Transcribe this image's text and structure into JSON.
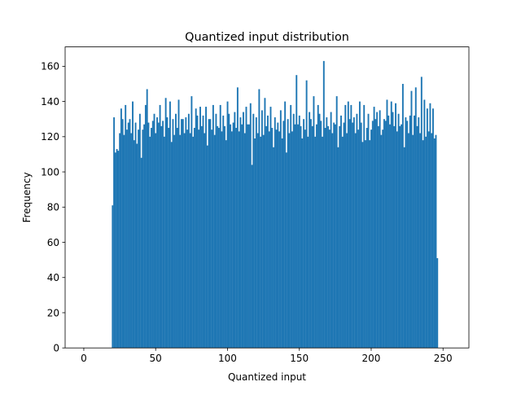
{
  "chart_data": {
    "type": "bar",
    "title": "Quantized input distribution",
    "xlabel": "Quantized input",
    "ylabel": "Frequency",
    "xlim": [
      -13,
      268
    ],
    "ylim": [
      0,
      171
    ],
    "x_ticks": [
      0,
      50,
      100,
      150,
      200,
      250
    ],
    "y_ticks": [
      0,
      20,
      40,
      60,
      80,
      100,
      120,
      140,
      160
    ],
    "bar_color": "#1f77b4",
    "grid": false,
    "series": [
      {
        "x_start": 20,
        "values": [
          81,
          131,
          111,
          113,
          112,
          122,
          136,
          130,
          121,
          138,
          124,
          128,
          130,
          122,
          140,
          118,
          128,
          116,
          124,
          133,
          108,
          124,
          127,
          138,
          147,
          128,
          120,
          125,
          129,
          133,
          122,
          131,
          128,
          138,
          126,
          129,
          120,
          142,
          131,
          125,
          140,
          117,
          130,
          121,
          133,
          125,
          141,
          121,
          130,
          130,
          122,
          131,
          124,
          133,
          122,
          143,
          120,
          125,
          136,
          132,
          124,
          137,
          126,
          132,
          122,
          137,
          115,
          130,
          130,
          124,
          138,
          121,
          133,
          126,
          125,
          138,
          123,
          132,
          126,
          118,
          140,
          133,
          127,
          123,
          128,
          134,
          125,
          148,
          123,
          131,
          127,
          134,
          122,
          137,
          127,
          127,
          139,
          104,
          133,
          119,
          131,
          122,
          147,
          120,
          135,
          121,
          142,
          126,
          132,
          123,
          137,
          125,
          114,
          131,
          124,
          128,
          123,
          135,
          119,
          129,
          140,
          111,
          130,
          122,
          138,
          123,
          133,
          127,
          155,
          127,
          132,
          126,
          119,
          130,
          124,
          152,
          120,
          134,
          130,
          126,
          143,
          120,
          127,
          138,
          133,
          129,
          120,
          163,
          125,
          131,
          126,
          124,
          134,
          122,
          128,
          127,
          143,
          114,
          126,
          132,
          120,
          128,
          138,
          122,
          140,
          130,
          138,
          128,
          131,
          122,
          133,
          124,
          140,
          128,
          117,
          138,
          118,
          125,
          133,
          118,
          124,
          129,
          137,
          130,
          134,
          126,
          135,
          121,
          124,
          130,
          129,
          141,
          132,
          127,
          140,
          134,
          126,
          139,
          123,
          133,
          126,
          127,
          150,
          114,
          131,
          129,
          122,
          132,
          146,
          121,
          132,
          148,
          126,
          131,
          122,
          154,
          118,
          141,
          120,
          136,
          123,
          139,
          122,
          136,
          119,
          121,
          51
        ]
      }
    ]
  }
}
